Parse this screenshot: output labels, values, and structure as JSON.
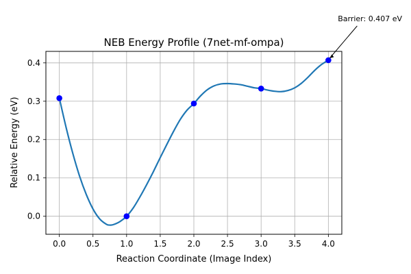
{
  "chart_data": {
    "type": "line",
    "title": "NEB Energy Profile (7net-mf-ompa)",
    "xlabel": "Reaction Coordinate (Image Index)",
    "ylabel": "Relative Energy (eV)",
    "xlim": [
      -0.2,
      4.2
    ],
    "ylim": [
      -0.047,
      0.43
    ],
    "xticks": [
      0.0,
      0.5,
      1.0,
      1.5,
      2.0,
      2.5,
      3.0,
      3.5,
      4.0
    ],
    "xtick_labels": [
      "0.0",
      "0.5",
      "1.0",
      "1.5",
      "2.0",
      "2.5",
      "3.0",
      "3.5",
      "4.0"
    ],
    "yticks": [
      0.0,
      0.1,
      0.2,
      0.3,
      0.4
    ],
    "ytick_labels": [
      "0.0",
      "0.1",
      "0.2",
      "0.3",
      "0.4"
    ],
    "grid": true,
    "series": [
      {
        "type": "line",
        "color": "#1f77b4",
        "x": [
          0.0,
          0.1,
          0.2,
          0.3,
          0.4,
          0.5,
          0.6,
          0.7,
          0.75,
          0.8,
          0.9,
          1.0,
          1.1,
          1.2,
          1.3,
          1.4,
          1.5,
          1.6,
          1.7,
          1.8,
          1.9,
          2.0,
          2.1,
          2.2,
          2.3,
          2.4,
          2.5,
          2.6,
          2.7,
          2.8,
          2.9,
          3.0,
          3.1,
          3.2,
          3.3,
          3.4,
          3.5,
          3.6,
          3.7,
          3.8,
          3.9,
          4.0
        ],
        "y": [
          0.308,
          0.232,
          0.164,
          0.105,
          0.057,
          0.019,
          -0.007,
          -0.021,
          -0.023,
          -0.022,
          -0.014,
          0.0,
          0.022,
          0.051,
          0.083,
          0.117,
          0.153,
          0.188,
          0.222,
          0.253,
          0.277,
          0.294,
          0.314,
          0.33,
          0.34,
          0.345,
          0.346,
          0.345,
          0.343,
          0.339,
          0.335,
          0.333,
          0.329,
          0.326,
          0.325,
          0.328,
          0.335,
          0.347,
          0.363,
          0.381,
          0.396,
          0.407
        ]
      },
      {
        "type": "scatter",
        "color": "#0000ff",
        "x": [
          0,
          1,
          2,
          3,
          4
        ],
        "y": [
          0.308,
          0.0,
          0.294,
          0.333,
          0.407
        ]
      }
    ],
    "annotation": {
      "text": "Barrier: 0.407 eV",
      "x": 4.0,
      "y": 0.407
    }
  }
}
